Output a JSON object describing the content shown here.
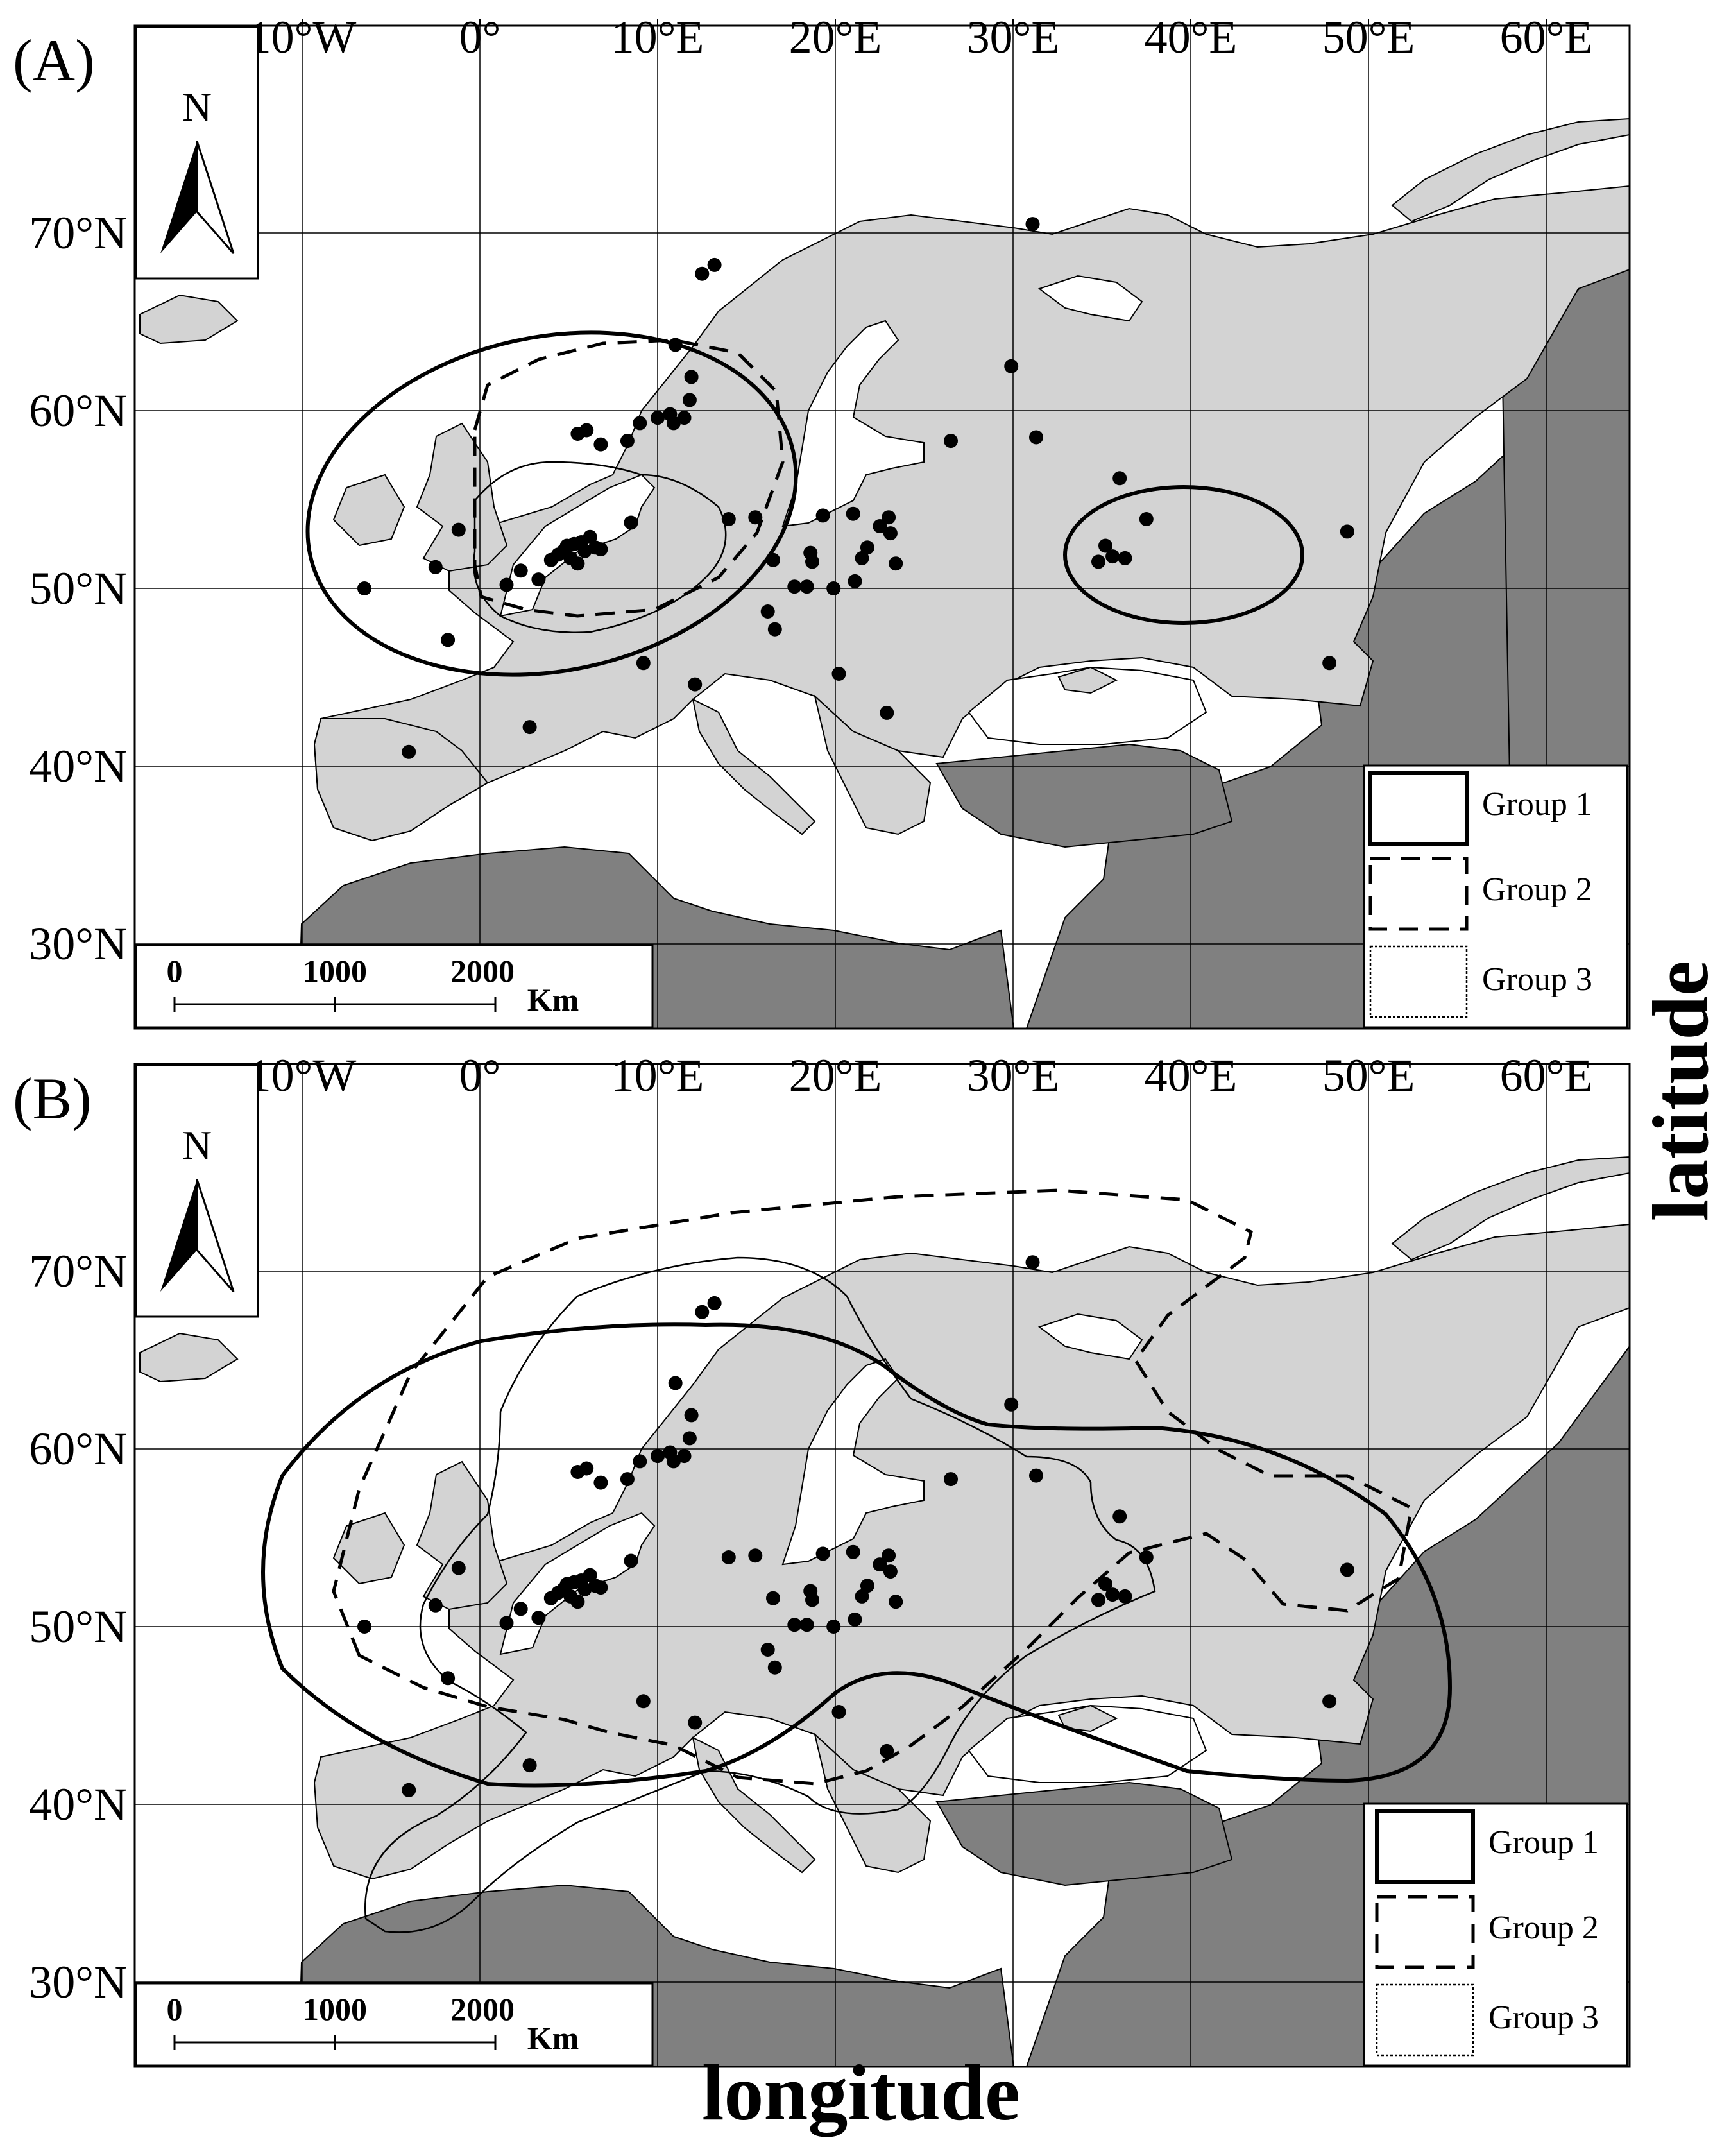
{
  "axes": {
    "x_title": "longitude",
    "y_title": "latitude",
    "lon_ticks": [
      {
        "lon": -10,
        "label": "10°W"
      },
      {
        "lon": 0,
        "label": "0°"
      },
      {
        "lon": 10,
        "label": "10°E"
      },
      {
        "lon": 20,
        "label": "20°E"
      },
      {
        "lon": 30,
        "label": "30°E"
      },
      {
        "lon": 40,
        "label": "40°E"
      },
      {
        "lon": 50,
        "label": "50°E"
      },
      {
        "lon": 60,
        "label": "60°E"
      }
    ],
    "lat_ticks": [
      {
        "lat": 70,
        "label": "70°N"
      },
      {
        "lat": 60,
        "label": "60°N"
      },
      {
        "lat": 50,
        "label": "50°N"
      },
      {
        "lat": 40,
        "label": "40°N"
      },
      {
        "lat": 30,
        "label": "30°N"
      }
    ]
  },
  "panels": [
    {
      "label": "(A)"
    },
    {
      "label": "(B)"
    }
  ],
  "north_arrow_label": "N",
  "scale_bar": {
    "ticks": [
      "0",
      "1000",
      "2000"
    ],
    "unit": "Km"
  },
  "legend": {
    "items": [
      {
        "label": "Group 1",
        "style": "solid"
      },
      {
        "label": "Group 2",
        "style": "dashed"
      },
      {
        "label": "Group 3",
        "style": "wavy"
      }
    ]
  },
  "colors": {
    "study_land": "#d3d3d3",
    "other_land": "#808080",
    "sea": "#ffffff",
    "lines": "#000000"
  },
  "sample_points": [
    [
      -6.5,
      50.0
    ],
    [
      -4.0,
      40.8
    ],
    [
      -2.5,
      51.2
    ],
    [
      -1.8,
      47.1
    ],
    [
      -1.2,
      53.3
    ],
    [
      1.5,
      50.2
    ],
    [
      2.3,
      51.0
    ],
    [
      2.8,
      42.2
    ],
    [
      3.3,
      50.5
    ],
    [
      4.0,
      51.6
    ],
    [
      4.4,
      51.9
    ],
    [
      4.7,
      52.1
    ],
    [
      4.9,
      52.4
    ],
    [
      5.1,
      51.7
    ],
    [
      5.3,
      52.5
    ],
    [
      5.5,
      51.4
    ],
    [
      5.7,
      52.6
    ],
    [
      5.9,
      52.1
    ],
    [
      6.2,
      52.9
    ],
    [
      6.5,
      52.3
    ],
    [
      6.8,
      52.2
    ],
    [
      5.5,
      58.7
    ],
    [
      6.0,
      58.9
    ],
    [
      6.8,
      58.1
    ],
    [
      8.3,
      58.3
    ],
    [
      8.5,
      53.7
    ],
    [
      9.0,
      59.3
    ],
    [
      9.2,
      45.8
    ],
    [
      10.0,
      59.6
    ],
    [
      10.7,
      59.8
    ],
    [
      10.9,
      59.3
    ],
    [
      11.0,
      63.7
    ],
    [
      11.5,
      59.6
    ],
    [
      11.8,
      60.6
    ],
    [
      11.9,
      61.9
    ],
    [
      12.1,
      44.6
    ],
    [
      12.5,
      67.7
    ],
    [
      13.2,
      68.2
    ],
    [
      14.0,
      53.9
    ],
    [
      15.5,
      54.0
    ],
    [
      16.2,
      48.7
    ],
    [
      16.6,
      47.7
    ],
    [
      16.5,
      51.6
    ],
    [
      17.7,
      50.1
    ],
    [
      18.7,
      51.5
    ],
    [
      18.6,
      52.0
    ],
    [
      18.4,
      50.1
    ],
    [
      19.3,
      54.1
    ],
    [
      19.9,
      50.0
    ],
    [
      20.2,
      45.2
    ],
    [
      21.0,
      54.2
    ],
    [
      21.1,
      50.4
    ],
    [
      21.5,
      51.7
    ],
    [
      21.8,
      52.3
    ],
    [
      22.5,
      53.5
    ],
    [
      22.9,
      43.0
    ],
    [
      23.0,
      54.0
    ],
    [
      23.1,
      53.1
    ],
    [
      23.4,
      51.4
    ],
    [
      26.5,
      58.3
    ],
    [
      29.9,
      62.5
    ],
    [
      31.1,
      70.5
    ],
    [
      31.3,
      58.5
    ],
    [
      34.8,
      51.5
    ],
    [
      35.2,
      52.4
    ],
    [
      35.6,
      51.8
    ],
    [
      36.0,
      56.2
    ],
    [
      36.3,
      51.7
    ],
    [
      37.5,
      53.9
    ],
    [
      47.8,
      45.8
    ],
    [
      48.8,
      53.2
    ]
  ]
}
